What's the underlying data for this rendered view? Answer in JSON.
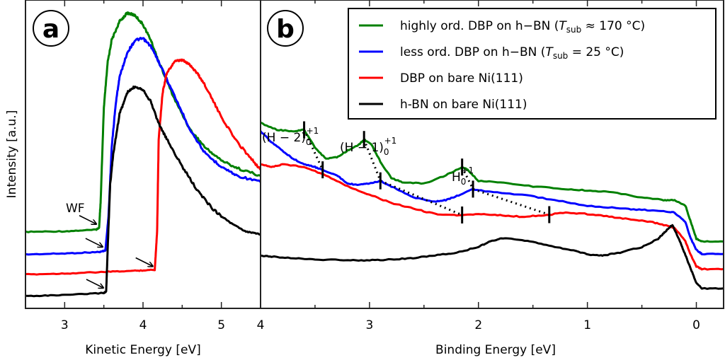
{
  "chart_data": [
    {
      "panel_label": "a",
      "type": "line",
      "xlabel": "Kinetic Energy [eV]",
      "ylabel": "Intensity [a.u.]",
      "xlim": [
        2.5,
        5.5
      ],
      "xticks": [
        3,
        4,
        5
      ],
      "xtick_labels": [
        "3",
        "4",
        "5"
      ],
      "ylim": [
        0,
        1
      ],
      "grid": false,
      "annotation": "WF",
      "series": [
        {
          "name": "highly ord. DBP on h-BN",
          "color": "#008000",
          "x": [
            2.5,
            3.0,
            3.4,
            3.44,
            3.46,
            3.5,
            3.55,
            3.6,
            3.7,
            3.8,
            3.9,
            4.0,
            4.1,
            4.2,
            4.4,
            4.6,
            4.8,
            5.0,
            5.2,
            5.5
          ],
          "y": [
            0.248,
            0.25,
            0.255,
            0.262,
            0.35,
            0.65,
            0.8,
            0.87,
            0.93,
            0.958,
            0.95,
            0.92,
            0.87,
            0.8,
            0.68,
            0.58,
            0.52,
            0.48,
            0.455,
            0.43
          ],
          "wf_edge": 3.44
        },
        {
          "name": "less ord. DBP on h-BN",
          "color": "#0000ff",
          "x": [
            2.5,
            3.0,
            3.45,
            3.52,
            3.56,
            3.6,
            3.65,
            3.7,
            3.8,
            3.9,
            4.0,
            4.1,
            4.2,
            4.4,
            4.6,
            4.8,
            5.0,
            5.2,
            5.5
          ],
          "y": [
            0.175,
            0.178,
            0.183,
            0.188,
            0.3,
            0.52,
            0.66,
            0.75,
            0.83,
            0.87,
            0.875,
            0.85,
            0.8,
            0.69,
            0.58,
            0.5,
            0.46,
            0.43,
            0.41
          ],
          "wf_edge": 3.52
        },
        {
          "name": "DBP on bare Ni(111)",
          "color": "#ff0000",
          "x": [
            2.5,
            3.0,
            3.5,
            3.9,
            4.15,
            4.18,
            4.2,
            4.25,
            4.3,
            4.4,
            4.5,
            4.6,
            4.7,
            4.8,
            5.0,
            5.2,
            5.4,
            5.5
          ],
          "y": [
            0.11,
            0.113,
            0.118,
            0.122,
            0.125,
            0.25,
            0.55,
            0.7,
            0.76,
            0.8,
            0.805,
            0.79,
            0.76,
            0.72,
            0.62,
            0.54,
            0.48,
            0.45
          ],
          "wf_edge": 4.16
        },
        {
          "name": "h-BN on bare Ni(111)",
          "color": "#000000",
          "x": [
            2.5,
            3.0,
            3.5,
            3.53,
            3.55,
            3.58,
            3.62,
            3.7,
            3.8,
            3.9,
            4.0,
            4.1,
            4.2,
            4.3,
            4.5,
            4.7,
            4.9,
            5.1,
            5.3,
            5.5
          ],
          "y": [
            0.04,
            0.043,
            0.05,
            0.055,
            0.2,
            0.4,
            0.5,
            0.63,
            0.7,
            0.72,
            0.71,
            0.67,
            0.6,
            0.55,
            0.46,
            0.38,
            0.32,
            0.28,
            0.25,
            0.24
          ],
          "wf_edge": 3.53
        }
      ]
    },
    {
      "panel_label": "b",
      "type": "line",
      "xlabel": "Binding Energy [eV]",
      "xlim": [
        4,
        -0.25
      ],
      "xticks": [
        4,
        3,
        2,
        1,
        0
      ],
      "xtick_labels": [
        "4",
        "3",
        "2",
        "1",
        "0"
      ],
      "ylim": [
        0,
        1
      ],
      "grid": false,
      "legend_position": "top-right",
      "legend": [
        {
          "label": "highly ord. DBP on h-BN (T_sub ≈ 170 °C)",
          "text": "highly ord. DBP on h−BN (",
          "T": "T",
          "sub": "sub",
          "rest": " ≈ 170 °C)",
          "color": "#008000"
        },
        {
          "label": "less ord. DBP on h-BN (T_sub = 25 °C)",
          "text": "less ord. DBP on h−BN (",
          "T": "T",
          "sub": "sub",
          "rest": " = 25 °C)",
          "color": "#0000ff"
        },
        {
          "label": "DBP on bare Ni(111)",
          "text": "DBP on bare Ni(111)",
          "color": "#ff0000"
        },
        {
          "label": "h-BN on bare Ni(111)",
          "text": "h-BN on bare Ni(111)",
          "color": "#000000"
        }
      ],
      "annotations": [
        {
          "label": "(H − 2)",
          "sub": "0",
          "sup": "+1",
          "x": 3.6
        },
        {
          "label": "(H − 1)",
          "sub": "0",
          "sup": "+1",
          "x": 3.05
        },
        {
          "label": "H",
          "sub": "0",
          "sup": "+1",
          "x": 2.15
        }
      ],
      "peak_markers": [
        {
          "series": 0,
          "x": 3.6
        },
        {
          "series": 1,
          "x": 3.43
        },
        {
          "series": 0,
          "x": 3.05
        },
        {
          "series": 1,
          "x": 2.9
        },
        {
          "series": 2,
          "x": 2.15
        },
        {
          "series": 0,
          "x": 2.15
        },
        {
          "series": 1,
          "x": 2.05
        },
        {
          "series": 2,
          "x": 1.35
        }
      ],
      "dotted_links": [
        [
          3.6,
          3.43
        ],
        [
          3.05,
          2.9,
          2.15
        ],
        [
          2.15,
          2.05,
          1.35
        ]
      ],
      "series": [
        {
          "name": "highly ord. DBP on h-BN",
          "color": "#008000",
          "x": [
            4.0,
            3.85,
            3.7,
            3.6,
            3.5,
            3.4,
            3.3,
            3.2,
            3.1,
            3.05,
            2.98,
            2.9,
            2.8,
            2.7,
            2.5,
            2.3,
            2.15,
            2.1,
            2.0,
            1.8,
            1.5,
            1.2,
            1.0,
            0.8,
            0.5,
            0.3,
            0.2,
            0.1,
            0.05,
            0.0,
            -0.05,
            -0.25
          ],
          "y": [
            0.58,
            0.555,
            0.55,
            0.555,
            0.49,
            0.45,
            0.455,
            0.48,
            0.5,
            0.52,
            0.5,
            0.44,
            0.38,
            0.365,
            0.36,
            0.39,
            0.42,
            0.41,
            0.37,
            0.365,
            0.35,
            0.34,
            0.335,
            0.33,
            0.31,
            0.3,
            0.3,
            0.28,
            0.22,
            0.16,
            0.15,
            0.15
          ]
        },
        {
          "name": "less ord. DBP on h-BN",
          "color": "#0000ff",
          "x": [
            4.0,
            3.9,
            3.8,
            3.7,
            3.6,
            3.5,
            3.43,
            3.3,
            3.2,
            3.1,
            3.0,
            2.9,
            2.8,
            2.6,
            2.4,
            2.3,
            2.2,
            2.05,
            1.9,
            1.6,
            1.3,
            1.0,
            0.7,
            0.5,
            0.3,
            0.2,
            0.1,
            0.05,
            0.0,
            -0.05,
            -0.25
          ],
          "y": [
            0.55,
            0.51,
            0.48,
            0.45,
            0.43,
            0.42,
            0.41,
            0.39,
            0.36,
            0.355,
            0.36,
            0.37,
            0.35,
            0.31,
            0.295,
            0.3,
            0.315,
            0.34,
            0.33,
            0.32,
            0.3,
            0.28,
            0.27,
            0.265,
            0.26,
            0.255,
            0.22,
            0.16,
            0.12,
            0.105,
            0.105
          ]
        },
        {
          "name": "DBP on bare Ni(111)",
          "color": "#ff0000",
          "x": [
            4.0,
            3.9,
            3.8,
            3.6,
            3.4,
            3.2,
            3.0,
            2.8,
            2.6,
            2.4,
            2.2,
            2.0,
            1.8,
            1.6,
            1.4,
            1.2,
            1.0,
            0.8,
            0.6,
            0.4,
            0.3,
            0.2,
            0.1,
            0.05,
            0.0,
            -0.05,
            -0.25
          ],
          "y": [
            0.43,
            0.42,
            0.43,
            0.42,
            0.39,
            0.35,
            0.32,
            0.29,
            0.27,
            0.25,
            0.245,
            0.25,
            0.245,
            0.24,
            0.245,
            0.255,
            0.25,
            0.24,
            0.23,
            0.22,
            0.21,
            0.2,
            0.15,
            0.1,
            0.06,
            0.05,
            0.05
          ]
        },
        {
          "name": "h-BN on bare Ni(111)",
          "color": "#000000",
          "x": [
            4.0,
            3.9,
            3.7,
            3.5,
            3.2,
            3.0,
            2.8,
            2.6,
            2.4,
            2.2,
            2.0,
            1.9,
            1.8,
            1.7,
            1.5,
            1.3,
            1.1,
            0.95,
            0.85,
            0.7,
            0.5,
            0.35,
            0.3,
            0.25,
            0.22,
            0.15,
            0.1,
            0.05,
            0.0,
            -0.05,
            -0.25
          ],
          "y": [
            0.1,
            0.095,
            0.09,
            0.085,
            0.083,
            0.082,
            0.085,
            0.09,
            0.1,
            0.11,
            0.13,
            0.15,
            0.16,
            0.16,
            0.15,
            0.13,
            0.115,
            0.1,
            0.1,
            0.11,
            0.13,
            0.16,
            0.18,
            0.2,
            0.21,
            0.15,
            0.1,
            0.05,
            0.0,
            -0.02,
            -0.02
          ]
        }
      ]
    }
  ]
}
